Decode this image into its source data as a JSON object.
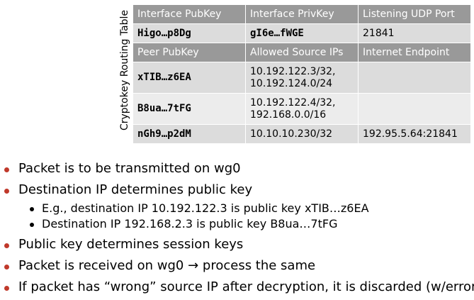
{
  "table": {
    "side_label": "Cryptokey Routing Table",
    "interface_header": [
      "Interface PubKey",
      "Interface PrivKey",
      "Listening UDP Port"
    ],
    "interface_row": [
      "Higo…p8Dg",
      "gI6e…fWGE",
      "21841"
    ],
    "peer_header": [
      "Peer PubKey",
      "Allowed Source IPs",
      "Internet Endpoint"
    ],
    "peers": [
      {
        "pubkey": "xTIB…z6EA",
        "ips": [
          "10.192.122.3/32,",
          "10.192.124.0/24"
        ],
        "endpoint": ""
      },
      {
        "pubkey": "B8ua…7tFG",
        "ips": [
          "10.192.122.4/32,",
          "192.168.0.0/16"
        ],
        "endpoint": ""
      },
      {
        "pubkey": "nGh9…p2dM",
        "ips": [
          "10.10.10.230/32"
        ],
        "endpoint": "192.95.5.64:21841"
      }
    ]
  },
  "bullets": {
    "b1": "Packet is to be transmitted on wg0",
    "b2": "Destination IP determines public key",
    "b2_sub": [
      "E.g., destination IP 10.192.122.3 is public key xTIB…z6EA",
      "Destination IP 192.168.2.3 is public key B8ua…7tFG"
    ],
    "b3": "Public key determines session keys",
    "b4": "Packet is received on wg0 → process the same",
    "b5": "If packet has “wrong” source IP after decryption, it is discarded (w/error)"
  },
  "colors": {
    "header_bg": "#999999",
    "row_bg": "#dcdcdc",
    "row_alt_bg": "#ececec",
    "bullet": "#c0392b"
  }
}
